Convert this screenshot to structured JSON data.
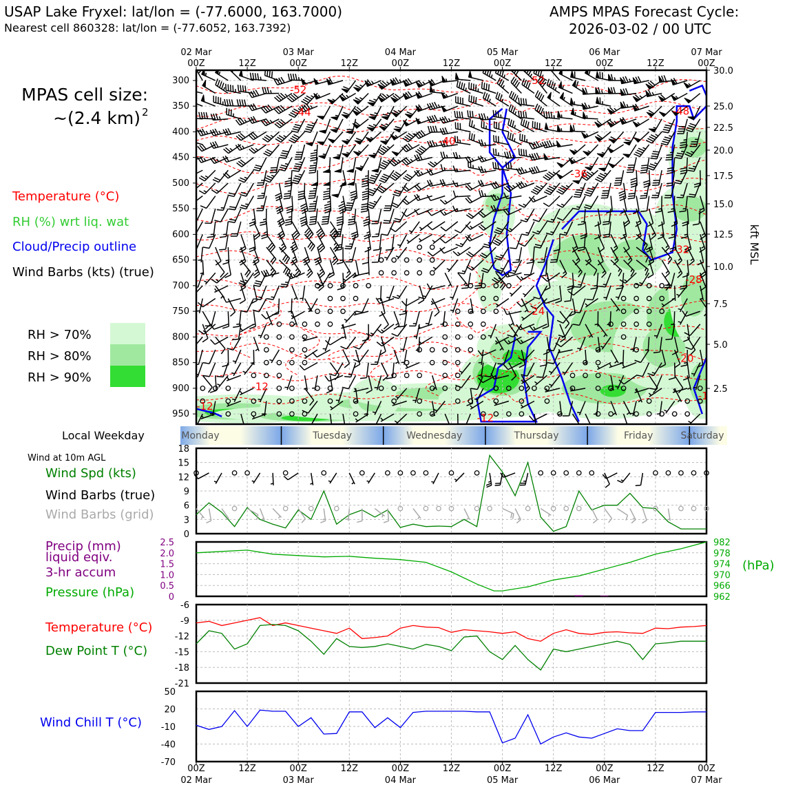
{
  "header": {
    "title_left": "USAP Lake Fryxel: lat/lon = (-77.6000, 163.7000)",
    "subtitle_left": "Nearest cell 860328: lat/lon = (-77.6052, 163.7392)",
    "title_right_1": "AMPS MPAS Forecast Cycle:",
    "title_right_2": "2026-03-02 / 00 UTC"
  },
  "cell_size": {
    "line1": "MPAS cell size:",
    "line2": "~(2.4 km)",
    "sup": "2"
  },
  "legend": {
    "temperature": "Temperature (°C)",
    "rh": "RH (%) wrt liq. wat",
    "cloud": "Cloud/Precip outline",
    "wind": "Wind Barbs (kts) (true)",
    "rh_levels": [
      {
        "label": "RH > 70%",
        "color": "#d4f8d4"
      },
      {
        "label": "RH > 80%",
        "color": "#a0e8a0"
      },
      {
        "label": "RH > 90%",
        "color": "#33dd33"
      }
    ]
  },
  "colors": {
    "temperature": "#ff0000",
    "rh": "#33cc33",
    "cloud": "#0000ee",
    "dewpoint": "#008000",
    "pressure": "#00aa00",
    "precip": "#800080",
    "windchill": "#0000ee",
    "grid_barbs": "#aaaaaa"
  },
  "time_axis": {
    "top_dates": [
      "02 Mar",
      "03 Mar",
      "04 Mar",
      "05 Mar",
      "06 Mar",
      "07 Mar"
    ],
    "hour_labels": [
      "00Z",
      "12Z",
      "00Z",
      "12Z",
      "00Z",
      "12Z",
      "00Z",
      "12Z",
      "00Z",
      "12Z",
      "00Z"
    ],
    "bottom_dates": [
      "02 Mar",
      "03 Mar",
      "04 Mar",
      "05 Mar",
      "06 Mar",
      "07 Mar"
    ]
  },
  "weekday_strip": {
    "label": "Local Weekday",
    "days": [
      "Monday",
      "Tuesday",
      "Wednesday",
      "Thursday",
      "Friday",
      "Saturday"
    ]
  },
  "chart_data": [
    {
      "type": "heatmap",
      "name": "pressure-time cross section",
      "ylabel_right": "kft MSL",
      "y_ticks_left": [
        "300",
        "350",
        "400",
        "450",
        "500",
        "550",
        "600",
        "650",
        "700",
        "750",
        "800",
        "850",
        "900",
        "950"
      ],
      "y_ticks_right": [
        "30.0",
        "25.0",
        "22.5",
        "20.0",
        "17.5",
        "15.0",
        "12.5",
        "10.0",
        "7.5",
        "5.0",
        "2.5"
      ],
      "temp_labels": [
        {
          "text": "-52",
          "t": 24,
          "p": 318
        },
        {
          "text": "-52",
          "t": 80,
          "p": 300
        },
        {
          "text": "-52",
          "t": 124,
          "p": 320
        },
        {
          "text": "-44",
          "t": 25,
          "p": 362
        },
        {
          "text": "-48",
          "t": 114,
          "p": 360
        },
        {
          "text": "-40",
          "t": 59,
          "p": 418
        },
        {
          "text": "-36",
          "t": 90,
          "p": 482
        },
        {
          "text": "-32",
          "t": 114,
          "p": 630
        },
        {
          "text": "-28",
          "t": 117,
          "p": 688
        },
        {
          "text": "-24",
          "t": 80,
          "p": 750
        },
        {
          "text": "-20",
          "t": 115,
          "p": 842
        },
        {
          "text": "-16",
          "t": 120,
          "p": 915
        },
        {
          "text": "-12",
          "t": 15,
          "p": 897
        },
        {
          "text": "-12",
          "t": 2,
          "p": 935
        },
        {
          "text": "-12",
          "t": 68,
          "p": 958
        }
      ]
    },
    {
      "type": "line",
      "name": "wind at 10m",
      "label_top": "Wind at 10m AGL",
      "legend": [
        "Wind Spd (kts)",
        "Wind Barbs (true)",
        "Wind Barbs (grid)"
      ],
      "ylim": [
        0,
        18
      ],
      "y_ticks": [
        "0",
        "3",
        "6",
        "9",
        "12",
        "15",
        "18"
      ],
      "x": [
        0,
        3,
        6,
        9,
        12,
        15,
        18,
        21,
        24,
        27,
        30,
        33,
        36,
        39,
        42,
        45,
        48,
        51,
        54,
        57,
        60,
        63,
        66,
        69,
        72,
        75,
        78,
        81,
        84,
        87,
        90,
        93,
        96,
        99,
        102,
        105,
        108,
        111,
        114,
        117,
        120
      ],
      "values": [
        4,
        6.5,
        4.5,
        1.5,
        5.5,
        3,
        2,
        1.2,
        5,
        3,
        9,
        2,
        4,
        5,
        3.5,
        5,
        1.3,
        2,
        1.5,
        1.6,
        1.5,
        3,
        1.5,
        16.5,
        13,
        8,
        15,
        3.5,
        0.5,
        1.5,
        9,
        5,
        6,
        6,
        8.5,
        5.5,
        5.3,
        2.5,
        1,
        1,
        1
      ]
    },
    {
      "type": "line",
      "name": "precip and pressure",
      "legend": [
        "Precip (mm)",
        "liquid eqiv.",
        "3-hr accum",
        "Pressure (hPa)"
      ],
      "ylim_left": [
        0,
        2.5
      ],
      "y_ticks_left": [
        "0",
        "0.5",
        "1.0",
        "1.5",
        "2.0",
        "2.5"
      ],
      "ylim_right": [
        962,
        982
      ],
      "y_ticks_right": [
        "962",
        "966",
        "970",
        "974",
        "978",
        "982"
      ],
      "ylabel_right": "(hPa)",
      "x": [
        0,
        6,
        12,
        18,
        24,
        30,
        36,
        42,
        48,
        54,
        60,
        66,
        70,
        72,
        78,
        84,
        90,
        96,
        102,
        108,
        114,
        120
      ],
      "pressure": [
        978,
        978.5,
        979,
        977.5,
        977,
        976.5,
        976.7,
        976,
        975.5,
        974.5,
        971,
        966.5,
        964,
        964,
        965.5,
        968,
        969.5,
        972,
        974.5,
        977.5,
        979.5,
        982
      ],
      "precip": [
        0,
        0,
        0,
        0,
        0,
        0,
        0,
        0,
        0,
        0,
        0,
        0,
        0,
        0,
        0,
        0,
        0.05,
        0.03,
        0,
        0,
        0,
        0
      ]
    },
    {
      "type": "line",
      "name": "temperature and dew point",
      "legend": [
        "Temperature (°C)",
        "Dew Point T (°C)"
      ],
      "ylim": [
        -21,
        -6
      ],
      "y_ticks": [
        "-6",
        "-9",
        "-12",
        "-15",
        "-18",
        "-21"
      ],
      "x": [
        0,
        3,
        6,
        9,
        12,
        15,
        18,
        21,
        24,
        27,
        30,
        33,
        36,
        39,
        42,
        45,
        48,
        51,
        54,
        57,
        60,
        63,
        66,
        69,
        72,
        75,
        78,
        81,
        84,
        87,
        90,
        93,
        96,
        99,
        102,
        105,
        108,
        111,
        114,
        117,
        120
      ],
      "temperature": [
        -9.5,
        -9.2,
        -10,
        -9.5,
        -9,
        -8.5,
        -10,
        -9.5,
        -10,
        -10.5,
        -11,
        -11.5,
        -10.5,
        -12.5,
        -12.3,
        -12,
        -10.5,
        -10,
        -10.3,
        -10.4,
        -11.3,
        -10.8,
        -11,
        -11.2,
        -11.5,
        -11.2,
        -12.5,
        -13,
        -11.5,
        -10.8,
        -11.5,
        -11.7,
        -11.3,
        -11.2,
        -11.4,
        -11.5,
        -10.5,
        -10.6,
        -10.3,
        -10.2,
        -10
      ],
      "dewpoint": [
        -13.5,
        -11,
        -11.5,
        -14.5,
        -13.5,
        -10,
        -9.8,
        -10,
        -11,
        -13,
        -15.5,
        -12.5,
        -14,
        -14.2,
        -14,
        -13.5,
        -14,
        -14.5,
        -13.6,
        -14,
        -14.8,
        -12.2,
        -12,
        -15,
        -16.5,
        -13.8,
        -16.5,
        -18.5,
        -14.5,
        -15,
        -14.5,
        -14,
        -13.5,
        -13,
        -13.6,
        -16.5,
        -13.5,
        -13.3,
        -13,
        -13,
        -13
      ]
    },
    {
      "type": "line",
      "name": "wind chill",
      "legend": [
        "Wind Chill T (°C)"
      ],
      "ylim": [
        -70,
        50
      ],
      "y_ticks": [
        "50",
        "20",
        "-10",
        "-40",
        "-70"
      ],
      "x": [
        0,
        3,
        6,
        9,
        12,
        15,
        18,
        21,
        24,
        27,
        30,
        33,
        36,
        39,
        42,
        45,
        48,
        51,
        54,
        57,
        60,
        63,
        66,
        69,
        72,
        75,
        78,
        81,
        84,
        87,
        90,
        93,
        96,
        99,
        102,
        105,
        108,
        111,
        114,
        117,
        120
      ],
      "values": [
        -8,
        -15,
        -10,
        17,
        -10,
        18,
        16,
        16,
        -10,
        5,
        -23,
        -22,
        15,
        15,
        -12,
        5,
        -12,
        14,
        16,
        16,
        16,
        16,
        15,
        15,
        -38,
        -30,
        10,
        -40,
        -28,
        -21,
        -28,
        -30,
        -22,
        -14,
        -17,
        -17,
        14,
        14,
        14,
        15,
        15
      ]
    }
  ]
}
